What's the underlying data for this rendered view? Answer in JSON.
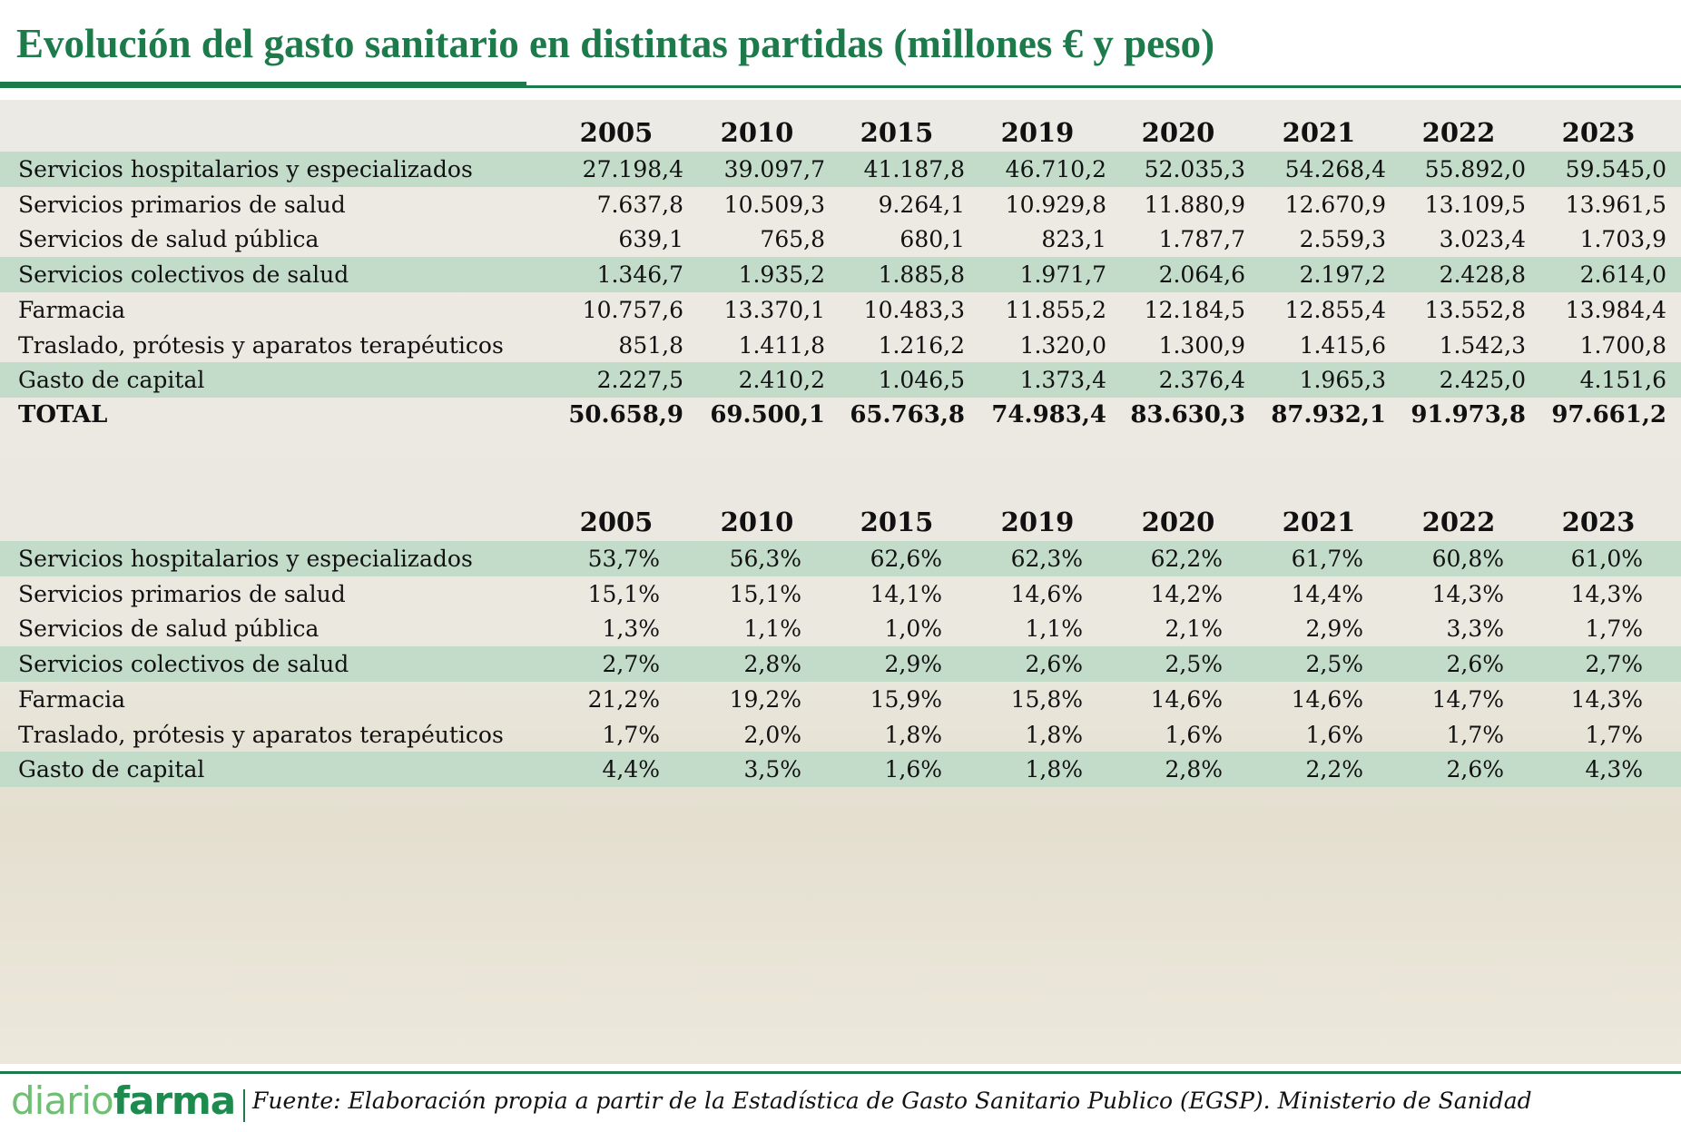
{
  "header": {
    "title": "Evolución del gasto sanitario en distintas partidas (millones € y peso)"
  },
  "tables": [
    {
      "columns": [
        "2005",
        "2010",
        "2015",
        "2019",
        "2020",
        "2021",
        "2022",
        "2023"
      ],
      "rows": [
        {
          "label": "Servicios hospitalarios y especializados",
          "cells": [
            "27.198,4",
            "39.097,7",
            "41.187,8",
            "46.710,2",
            "52.035,3",
            "54.268,4",
            "55.892,0",
            "59.545,0"
          ]
        },
        {
          "label": "Servicios primarios de salud",
          "cells": [
            "7.637,8",
            "10.509,3",
            "9.264,1",
            "10.929,8",
            "11.880,9",
            "12.670,9",
            "13.109,5",
            "13.961,5"
          ]
        },
        {
          "label": "Servicios de salud pública",
          "cells": [
            "639,1",
            "765,8",
            "680,1",
            "823,1",
            "1.787,7",
            "2.559,3",
            "3.023,4",
            "1.703,9"
          ]
        },
        {
          "label": "Servicios colectivos de salud",
          "cells": [
            "1.346,7",
            "1.935,2",
            "1.885,8",
            "1.971,7",
            "2.064,6",
            "2.197,2",
            "2.428,8",
            "2.614,0"
          ]
        },
        {
          "label": "Farmacia",
          "cells": [
            "10.757,6",
            "13.370,1",
            "10.483,3",
            "11.855,2",
            "12.184,5",
            "12.855,4",
            "13.552,8",
            "13.984,4"
          ]
        },
        {
          "label": "Traslado, prótesis y aparatos terapéuticos",
          "cells": [
            "851,8",
            "1.411,8",
            "1.216,2",
            "1.320,0",
            "1.300,9",
            "1.415,6",
            "1.542,3",
            "1.700,8"
          ]
        },
        {
          "label": "Gasto de capital",
          "cells": [
            "2.227,5",
            "2.410,2",
            "1.046,5",
            "1.373,4",
            "2.376,4",
            "1.965,3",
            "2.425,0",
            "4.151,6"
          ]
        },
        {
          "label": "TOTAL",
          "cells": [
            "50.658,9",
            "69.500,1",
            "65.763,8",
            "74.983,4",
            "83.630,3",
            "87.932,1",
            "91.973,8",
            "97.661,2"
          ]
        }
      ]
    },
    {
      "columns": [
        "2005",
        "2010",
        "2015",
        "2019",
        "2020",
        "2021",
        "2022",
        "2023"
      ],
      "rows": [
        {
          "label": "Servicios hospitalarios y especializados",
          "cells": [
            "53,7%",
            "56,3%",
            "62,6%",
            "62,3%",
            "62,2%",
            "61,7%",
            "60,8%",
            "61,0%"
          ]
        },
        {
          "label": "Servicios primarios de salud",
          "cells": [
            "15,1%",
            "15,1%",
            "14,1%",
            "14,6%",
            "14,2%",
            "14,4%",
            "14,3%",
            "14,3%"
          ]
        },
        {
          "label": "Servicios de salud pública",
          "cells": [
            "1,3%",
            "1,1%",
            "1,0%",
            "1,1%",
            "2,1%",
            "2,9%",
            "3,3%",
            "1,7%"
          ]
        },
        {
          "label": "Servicios colectivos de salud",
          "cells": [
            "2,7%",
            "2,8%",
            "2,9%",
            "2,6%",
            "2,5%",
            "2,5%",
            "2,6%",
            "2,7%"
          ]
        },
        {
          "label": "Farmacia",
          "cells": [
            "21,2%",
            "19,2%",
            "15,9%",
            "15,8%",
            "14,6%",
            "14,6%",
            "14,7%",
            "14,3%"
          ]
        },
        {
          "label": "Traslado, prótesis y aparatos terapéuticos",
          "cells": [
            "1,7%",
            "2,0%",
            "1,8%",
            "1,8%",
            "1,6%",
            "1,6%",
            "1,7%",
            "1,7%"
          ]
        },
        {
          "label": "Gasto de capital",
          "cells": [
            "4,4%",
            "3,5%",
            "1,6%",
            "1,8%",
            "2,8%",
            "2,2%",
            "2,6%",
            "4,3%"
          ]
        }
      ]
    }
  ],
  "footer": {
    "brand": [
      "diario",
      "farma"
    ],
    "source": "Fuente: Elaboración propia a partir de la Estadística de Gasto Sanitario Publico (EGSP). Ministerio de Sanidad"
  }
}
